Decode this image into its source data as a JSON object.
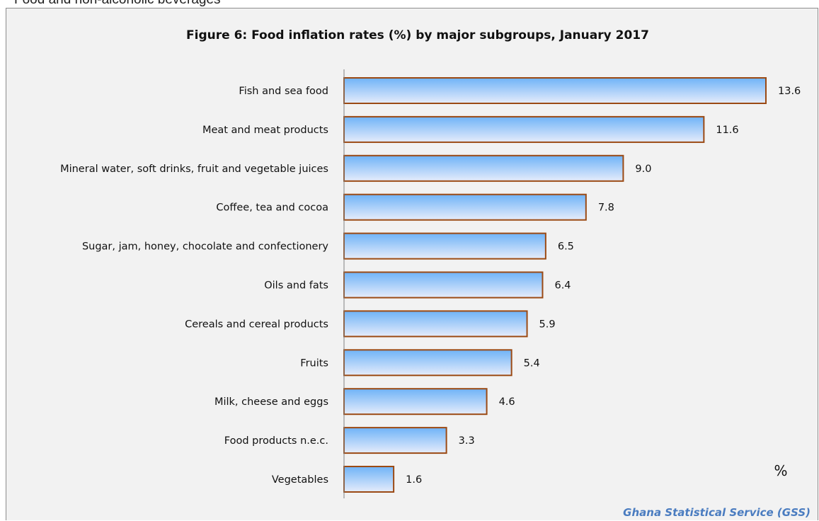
{
  "header": {
    "caption": "Food and non-alcoholic beverages"
  },
  "chart_data": {
    "type": "bar",
    "orientation": "horizontal",
    "title": "Figure 6: Food inflation rates (%) by  major subgroups, January 2017",
    "categories": [
      "Fish and sea food",
      "Meat and meat products",
      "Mineral water, soft drinks, fruit and vegetable juices",
      "Coffee, tea and cocoa",
      "Sugar, jam, honey, chocolate and confectionery",
      "Oils and fats",
      "Cereals and cereal products",
      "Fruits",
      "Milk, cheese and eggs",
      "Food products n.e.c.",
      "Vegetables"
    ],
    "values": [
      13.6,
      11.6,
      9.0,
      7.8,
      6.5,
      6.4,
      5.9,
      5.4,
      4.6,
      3.3,
      1.6
    ],
    "value_labels": [
      "13.6",
      "11.6",
      "9.0",
      "7.8",
      "6.5",
      "6.4",
      "5.9",
      "5.4",
      "4.6",
      "3.3",
      "1.6"
    ],
    "xlim": [
      0,
      13.6
    ],
    "unit_label": "%",
    "source": "Ghana Statistical Service (GSS)",
    "grid": false,
    "legend": "none",
    "colors": {
      "bar_top": "#6fb3f7",
      "bar_bottom": "#e6ecfb",
      "bar_border": "#9b4a14",
      "axis": "#808080",
      "background": "#f2f2f2",
      "source_text": "#4a7cc0"
    }
  }
}
